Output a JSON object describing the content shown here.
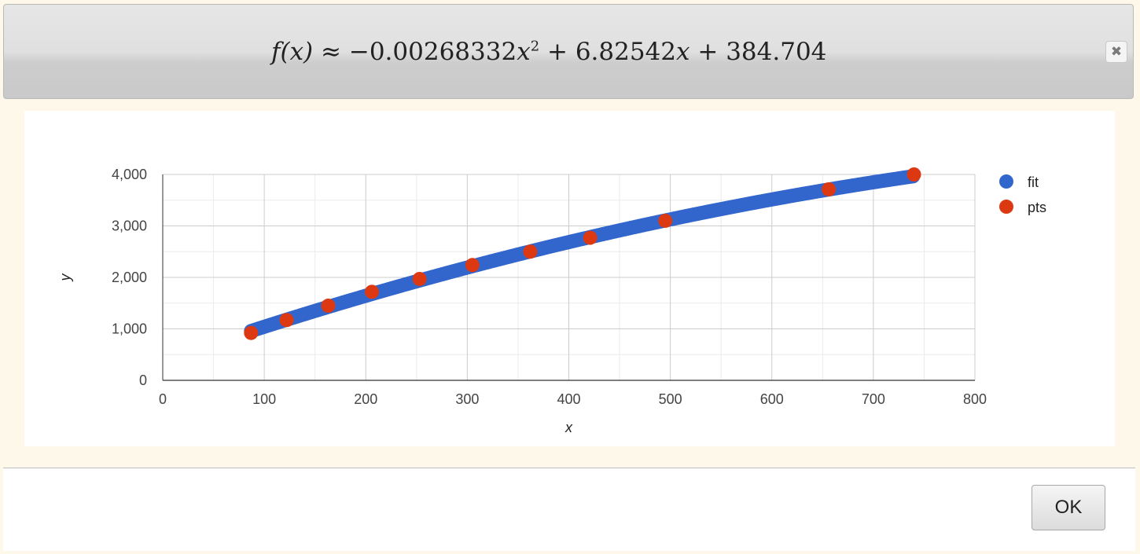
{
  "dialog": {
    "formula": {
      "lhs": "f(x)",
      "approx": "≈",
      "a": "−0.00268332",
      "x1": "x",
      "exp": "2",
      "b": "+ 6.82542",
      "x2": "x",
      "c": "+ 384.704"
    },
    "close_icon": "close-icon",
    "close_glyph": "✖",
    "ok_label": "OK"
  },
  "colors": {
    "fit": "#3366cc",
    "pts": "#dc3912",
    "grid": "#cccccc",
    "minor_grid": "#ebebeb",
    "axis": "#333333"
  },
  "chart_data": {
    "type": "scatter",
    "xlabel": "x",
    "ylabel": "y",
    "xlim": [
      0,
      800
    ],
    "ylim": [
      0,
      4000
    ],
    "xticks": [
      "0",
      "100",
      "200",
      "300",
      "400",
      "500",
      "600",
      "700",
      "800"
    ],
    "yticks": [
      "0",
      "1,000",
      "2,000",
      "3,000",
      "4,000"
    ],
    "grid": true,
    "legend": "right",
    "legend_entries": [
      "fit",
      "pts"
    ],
    "fit": {
      "a": -0.00268332,
      "b": 6.82542,
      "c": 384.704,
      "x_range": [
        87,
        740
      ]
    },
    "series": [
      {
        "name": "pts",
        "points": [
          [
            87,
            920
          ],
          [
            122,
            1170
          ],
          [
            163,
            1450
          ],
          [
            206,
            1720
          ],
          [
            253,
            1970
          ],
          [
            305,
            2240
          ],
          [
            362,
            2500
          ],
          [
            421,
            2770
          ],
          [
            495,
            3100
          ],
          [
            656,
            3710
          ],
          [
            740,
            4000
          ]
        ]
      }
    ]
  }
}
